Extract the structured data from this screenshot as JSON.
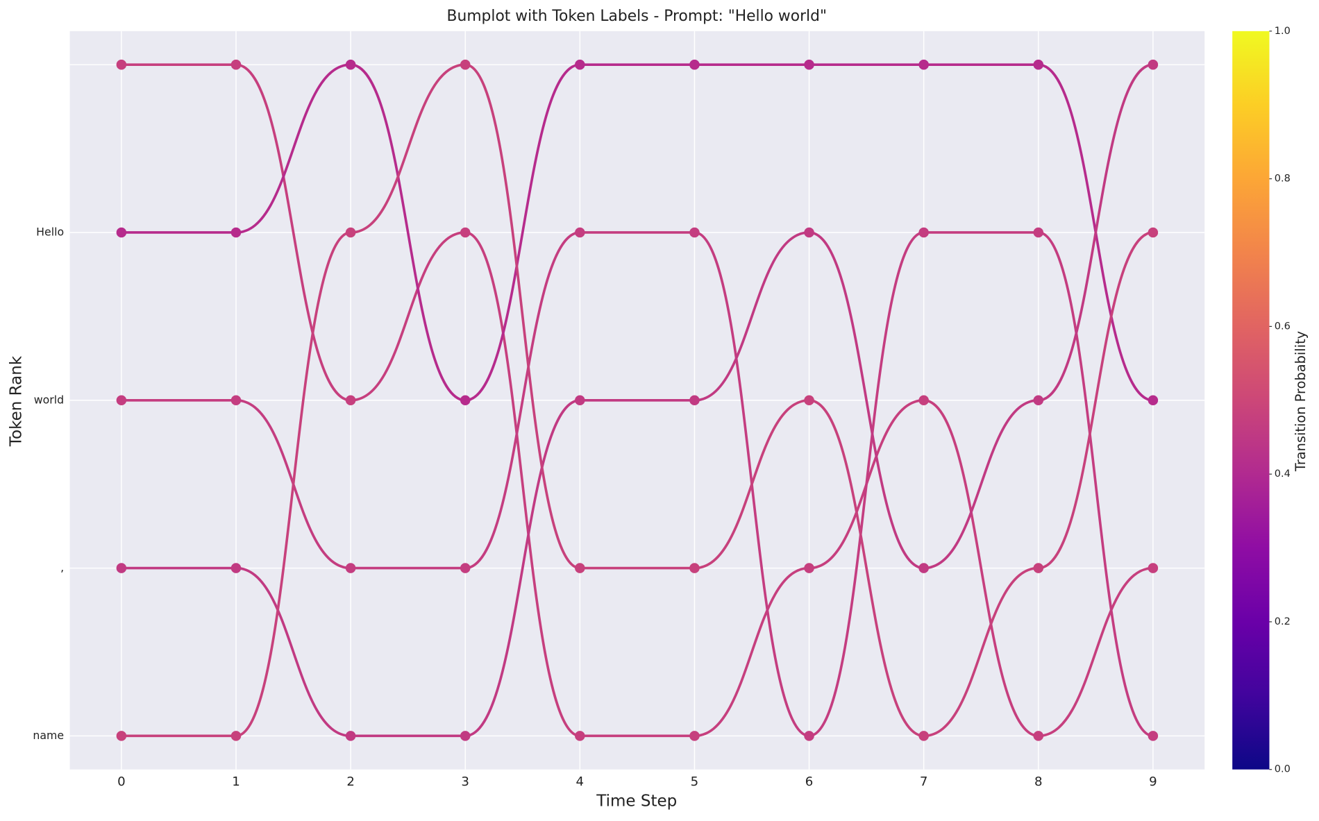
{
  "chart_data": {
    "type": "bump",
    "title": "Bumplot with Token Labels - Prompt: \"Hello world\"",
    "xlabel": "Time Step",
    "ylabel": "Token Rank",
    "x": [
      0,
      1,
      2,
      3,
      4,
      5,
      6,
      7,
      8,
      9
    ],
    "xlim": [
      -0.45,
      9.45
    ],
    "xticks": [
      0,
      1,
      2,
      3,
      4,
      5,
      6,
      7,
      8,
      9
    ],
    "ylim": [
      4.2,
      -0.2
    ],
    "yticks": [
      0,
      1,
      2,
      3,
      4
    ],
    "ytick_labels": [
      null,
      "Hello",
      "world",
      ",",
      "name"
    ],
    "grid": true,
    "series": [
      {
        "color": "#c63f7e",
        "values": [
          0,
          0,
          2,
          1,
          4,
          4,
          3,
          2,
          4,
          3
        ]
      },
      {
        "color": "#b62b8c",
        "values": [
          1,
          1,
          0,
          2,
          0,
          0,
          0,
          0,
          0,
          2
        ]
      },
      {
        "color": "#c43d80",
        "values": [
          2,
          2,
          3,
          3,
          1,
          1,
          4,
          1,
          1,
          4
        ]
      },
      {
        "color": "#c13a82",
        "values": [
          3,
          3,
          4,
          4,
          2,
          2,
          1,
          3,
          2,
          0
        ]
      },
      {
        "color": "#c7417c",
        "values": [
          4,
          4,
          1,
          0,
          3,
          3,
          2,
          4,
          3,
          1
        ]
      }
    ],
    "colorbar": {
      "label": "Transition Probability",
      "lim": [
        0,
        1
      ],
      "ticks": [
        {
          "value": 0,
          "label": "0.0"
        },
        {
          "value": 0.2,
          "label": "0.2"
        },
        {
          "value": 0.4,
          "label": "0.4"
        },
        {
          "value": 0.6,
          "label": "0.6"
        },
        {
          "value": 0.8,
          "label": "0.8"
        },
        {
          "value": 1,
          "label": "1.0"
        }
      ],
      "colormap": [
        "#0d0887",
        "#41049d",
        "#6a00a8",
        "#8f0da4",
        "#b12a90",
        "#cc4778",
        "#e16462",
        "#f2844b",
        "#fca636",
        "#fcce25",
        "#f0f921"
      ]
    }
  }
}
